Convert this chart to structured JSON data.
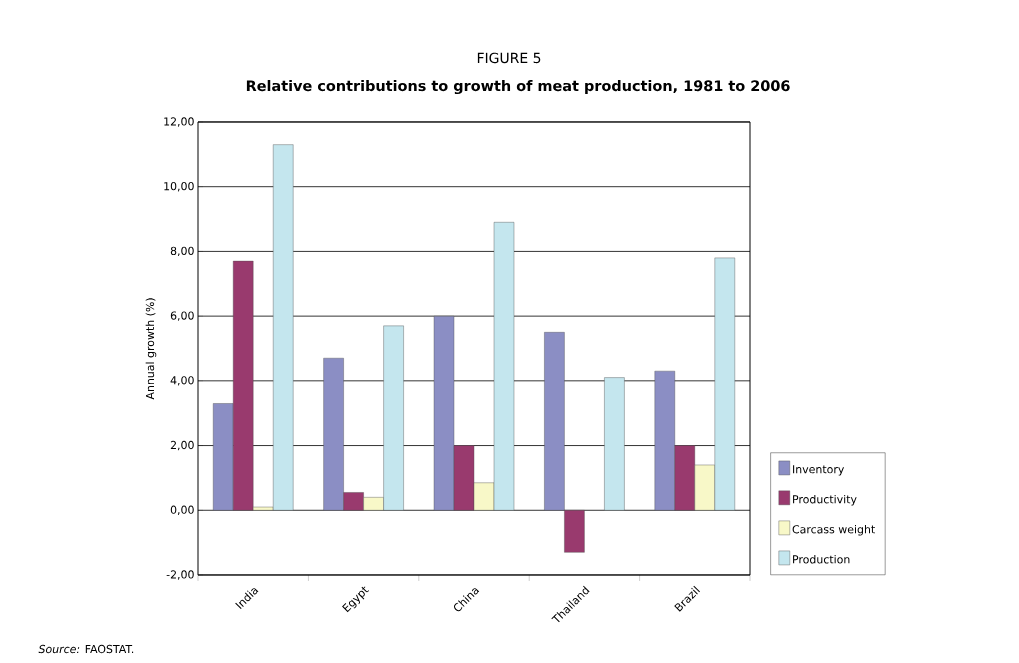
{
  "chart_data": {
    "type": "bar",
    "title": "FIGURE 5",
    "subtitle": "Relative contributions to growth of meat production, 1981 to 2006",
    "ylabel": "Annual growth (%)",
    "categories": [
      "India",
      "Egypt",
      "China",
      "Thailand",
      "Brazil"
    ],
    "series": [
      {
        "name": "Inventory",
        "color": "#8b8ec4",
        "values": [
          3.3,
          4.7,
          6.0,
          5.5,
          4.3
        ]
      },
      {
        "name": "Productivity",
        "color": "#993a6e",
        "values": [
          7.7,
          0.55,
          2.0,
          -1.3,
          2.0
        ]
      },
      {
        "name": "Carcass weight",
        "color": "#f8f8c8",
        "values": [
          0.1,
          0.4,
          0.85,
          null,
          1.4
        ]
      },
      {
        "name": "Production",
        "color": "#c4e6ee",
        "values": [
          11.3,
          5.7,
          8.9,
          4.1,
          7.8
        ]
      }
    ],
    "ylim": [
      -2,
      12
    ],
    "yticks": [
      {
        "value": -2,
        "label": "-2,00"
      },
      {
        "value": 0,
        "label": "0,00"
      },
      {
        "value": 2,
        "label": "2,00"
      },
      {
        "value": 4,
        "label": "4,00"
      },
      {
        "value": 6,
        "label": "6,00"
      },
      {
        "value": 8,
        "label": "8,00"
      },
      {
        "value": 10,
        "label": "10,00"
      },
      {
        "value": 12,
        "label": "12,00"
      }
    ],
    "grid": "y",
    "legend": "right",
    "annotations": [
      "*Source:* FAOSTAT."
    ]
  }
}
